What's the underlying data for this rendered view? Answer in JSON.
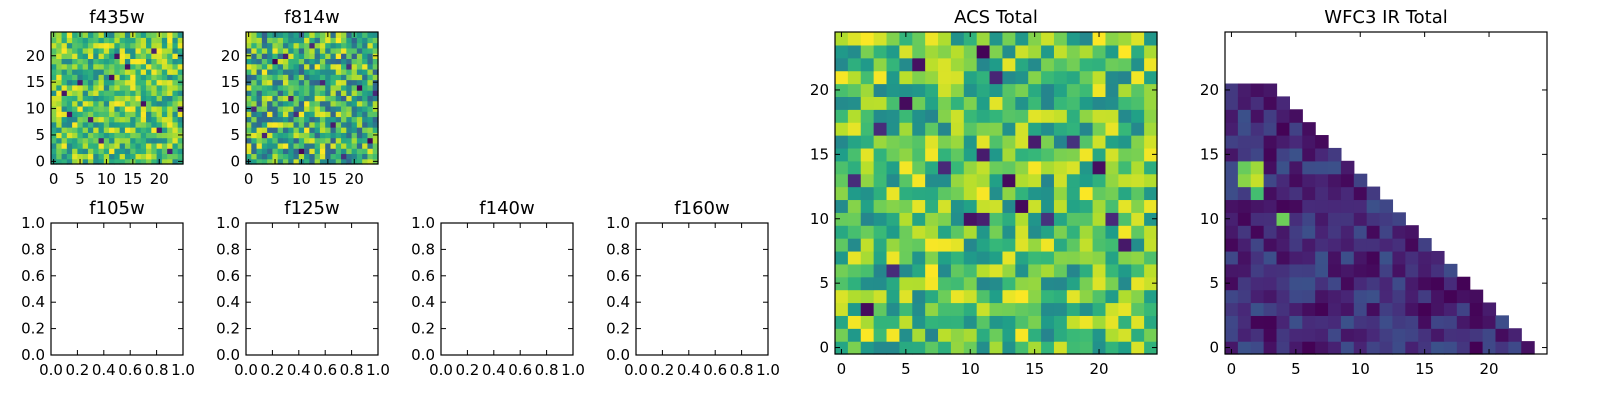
{
  "chart_data": [
    {
      "type": "heatmap",
      "title": "f435w",
      "grid": [
        25,
        25
      ],
      "seed": 11,
      "range": [
        0.45,
        1.0
      ],
      "dark_cells": [
        [
          5,
          15
        ],
        [
          7,
          8
        ],
        [
          14,
          18
        ],
        [
          19,
          21
        ],
        [
          3,
          9
        ],
        [
          22,
          2
        ],
        [
          17,
          11
        ],
        [
          9,
          4
        ],
        [
          12,
          20
        ],
        [
          2,
          13
        ],
        [
          20,
          6
        ],
        [
          11,
          16
        ],
        [
          24,
          10
        ]
      ],
      "xticks": [
        "0",
        "5",
        "10",
        "15",
        "20"
      ],
      "yticks": [
        "0",
        "5",
        "10",
        "15",
        "20"
      ],
      "xlim": [
        -0.5,
        24.5
      ],
      "ylim": [
        -0.5,
        24.5
      ]
    },
    {
      "type": "heatmap",
      "title": "f814w",
      "grid": [
        25,
        25
      ],
      "seed": 23,
      "range": [
        0.3,
        1.0
      ],
      "dark_cells": [
        [
          5,
          19
        ],
        [
          8,
          12
        ],
        [
          3,
          5
        ],
        [
          12,
          22
        ],
        [
          16,
          7
        ],
        [
          21,
          14
        ],
        [
          10,
          2
        ],
        [
          19,
          18
        ],
        [
          1,
          10
        ],
        [
          14,
          15
        ],
        [
          23,
          4
        ],
        [
          7,
          20
        ],
        [
          18,
          1
        ],
        [
          9,
          9
        ],
        [
          24,
          13
        ]
      ],
      "xticks": [
        "0",
        "5",
        "10",
        "15",
        "20"
      ],
      "yticks": [
        "0",
        "5",
        "10",
        "15",
        "20"
      ],
      "xlim": [
        -0.5,
        24.5
      ],
      "ylim": [
        -0.5,
        24.5
      ]
    },
    {
      "type": "heatmap",
      "title": "f105w",
      "empty": true,
      "xticks": [
        "0.0",
        "0.2",
        "0.4",
        "0.6",
        "0.8",
        "1.0"
      ],
      "yticks": [
        "0.0",
        "0.2",
        "0.4",
        "0.6",
        "0.8",
        "1.0"
      ],
      "xlim": [
        0,
        1
      ],
      "ylim": [
        0,
        1
      ]
    },
    {
      "type": "heatmap",
      "title": "f125w",
      "empty": true,
      "xticks": [
        "0.0",
        "0.2",
        "0.4",
        "0.6",
        "0.8",
        "1.0"
      ],
      "yticks": [
        "0.0",
        "0.2",
        "0.4",
        "0.6",
        "0.8",
        "1.0"
      ],
      "xlim": [
        0,
        1
      ],
      "ylim": [
        0,
        1
      ]
    },
    {
      "type": "heatmap",
      "title": "f140w",
      "empty": true,
      "xticks": [
        "0.0",
        "0.2",
        "0.4",
        "0.6",
        "0.8",
        "1.0"
      ],
      "yticks": [
        "0.0",
        "0.2",
        "0.4",
        "0.6",
        "0.8",
        "1.0"
      ],
      "xlim": [
        0,
        1
      ],
      "ylim": [
        0,
        1
      ]
    },
    {
      "type": "heatmap",
      "title": "f160w",
      "empty": true,
      "xticks": [
        "0.0",
        "0.2",
        "0.4",
        "0.6",
        "0.8",
        "1.0"
      ],
      "yticks": [
        "0.0",
        "0.2",
        "0.4",
        "0.6",
        "0.8",
        "1.0"
      ],
      "xlim": [
        0,
        1
      ],
      "ylim": [
        0,
        1
      ]
    },
    {
      "type": "heatmap",
      "title": "ACS Total",
      "grid": [
        25,
        25
      ],
      "seed": 37,
      "range": [
        0.45,
        1.0
      ],
      "dark_cells": [
        [
          11,
          23
        ],
        [
          12,
          21
        ],
        [
          5,
          19
        ],
        [
          3,
          17
        ],
        [
          15,
          16
        ],
        [
          11,
          15
        ],
        [
          8,
          14
        ],
        [
          20,
          14
        ],
        [
          1,
          13
        ],
        [
          13,
          13
        ],
        [
          16,
          10
        ],
        [
          10,
          10
        ],
        [
          11,
          10
        ],
        [
          21,
          10
        ],
        [
          4,
          6
        ],
        [
          2,
          3
        ],
        [
          14,
          11
        ],
        [
          18,
          16
        ],
        [
          6,
          22
        ],
        [
          22,
          8
        ]
      ],
      "xticks": [
        "0",
        "5",
        "10",
        "15",
        "20"
      ],
      "yticks": [
        "0",
        "5",
        "10",
        "15",
        "20"
      ],
      "xlim": [
        -0.5,
        24.5
      ],
      "ylim": [
        -0.5,
        24.5
      ]
    },
    {
      "type": "heatmap",
      "title": "WFC3 IR Total",
      "grid": [
        25,
        25
      ],
      "seed": 41,
      "triangular": true,
      "range": [
        0.0,
        0.25
      ],
      "bright_cells": [
        [
          2,
          12
        ],
        [
          2,
          13
        ],
        [
          2,
          14
        ],
        [
          4,
          10
        ],
        [
          1,
          14
        ],
        [
          1,
          13
        ]
      ],
      "xticks": [
        "0",
        "5",
        "10",
        "15",
        "20"
      ],
      "yticks": [
        "0",
        "5",
        "10",
        "15",
        "20"
      ],
      "xlim": [
        -0.5,
        24.5
      ],
      "ylim": [
        -0.5,
        24.5
      ]
    }
  ]
}
